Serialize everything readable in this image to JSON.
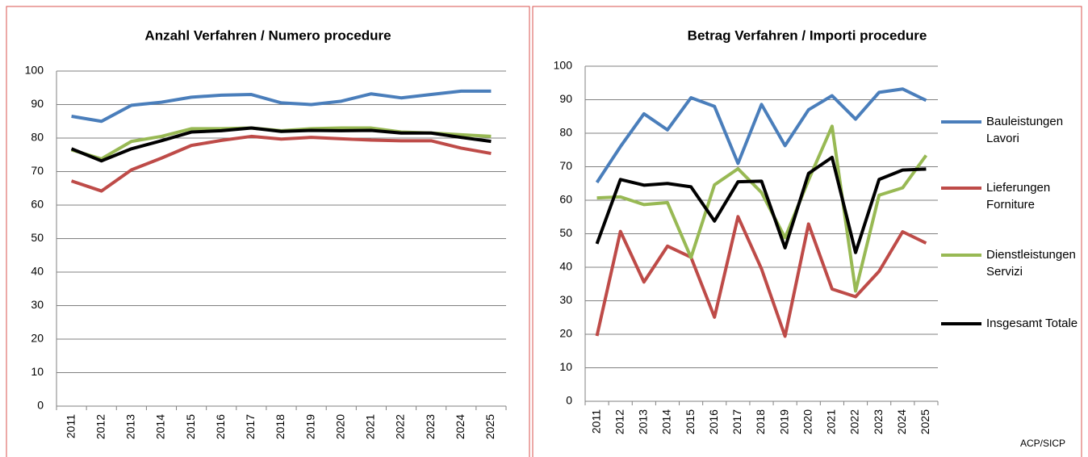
{
  "chart_data": [
    {
      "type": "line",
      "title": "Anzahl Verfahren / Numero procedure",
      "categories": [
        "2011",
        "2012",
        "2013",
        "2014",
        "2015",
        "2016",
        "2017",
        "2018",
        "2019",
        "2020",
        "2021",
        "2022",
        "2023",
        "2024",
        "2025"
      ],
      "series": [
        {
          "color": "#4a7ebb",
          "values": [
            86.5,
            85,
            89.8,
            90.7,
            92.2,
            92.8,
            93,
            90.5,
            90,
            91,
            93.2,
            92,
            93,
            94,
            94
          ]
        },
        {
          "color": "#be4b48",
          "values": [
            67.2,
            64.2,
            70.5,
            74,
            77.8,
            79.3,
            80.5,
            79.7,
            80.2,
            79.8,
            79.4,
            79.2,
            79.2,
            77,
            75.4
          ]
        },
        {
          "color": "#98b954",
          "values": [
            76.5,
            73.8,
            79,
            80.5,
            82.8,
            82.8,
            83,
            82.2,
            82.8,
            83,
            83,
            81.8,
            81.5,
            81,
            80.5
          ]
        },
        {
          "color": "#000000",
          "values": [
            76.8,
            73.2,
            76.8,
            79.2,
            81.8,
            82.2,
            83,
            82,
            82.3,
            82.2,
            82.3,
            81.5,
            81.5,
            80.2,
            79
          ]
        }
      ],
      "ylim": [
        0,
        100
      ],
      "yticks": [
        0,
        10,
        20,
        30,
        40,
        50,
        60,
        70,
        80,
        90,
        100
      ],
      "grid": true
    },
    {
      "type": "line",
      "title": "Betrag Verfahren / Importi procedure",
      "categories": [
        "2011",
        "2012",
        "2013",
        "2014",
        "2015",
        "2016",
        "2017",
        "2018",
        "2019",
        "2020",
        "2021",
        "2022",
        "2023",
        "2024",
        "2025"
      ],
      "series": [
        {
          "name": "Bauleistungen Lavori",
          "color": "#4a7ebb",
          "values": [
            65.3,
            76,
            85.8,
            81,
            90.6,
            88,
            71,
            88.6,
            76.3,
            87,
            91.2,
            84.2,
            92.2,
            93.2,
            89.8
          ]
        },
        {
          "name": "Lieferungen Forniture",
          "color": "#be4b48",
          "values": [
            19.5,
            50.7,
            35.6,
            46.3,
            43,
            25.1,
            55.1,
            39.5,
            19.4,
            52.9,
            33.5,
            31.2,
            38.8,
            50.6,
            47.2
          ]
        },
        {
          "name": "Dienstleistungen Servizi",
          "color": "#98b954",
          "values": [
            60.7,
            61,
            58.7,
            59.3,
            42.9,
            64.6,
            69.4,
            62.3,
            48.8,
            66,
            82.1,
            32.9,
            61.5,
            63.7,
            73.4
          ]
        },
        {
          "name": "Insgesamt Totale",
          "color": "#000000",
          "values": [
            47,
            66.2,
            64.5,
            65,
            64,
            53.8,
            65.5,
            65.7,
            45.8,
            68,
            72.8,
            44.4,
            66.2,
            69,
            69.3
          ]
        }
      ],
      "ylim": [
        0,
        100
      ],
      "yticks": [
        0,
        10,
        20,
        30,
        40,
        50,
        60,
        70,
        80,
        90,
        100
      ],
      "grid": true,
      "legend": "right",
      "annotation": "ACP/SICP"
    }
  ]
}
